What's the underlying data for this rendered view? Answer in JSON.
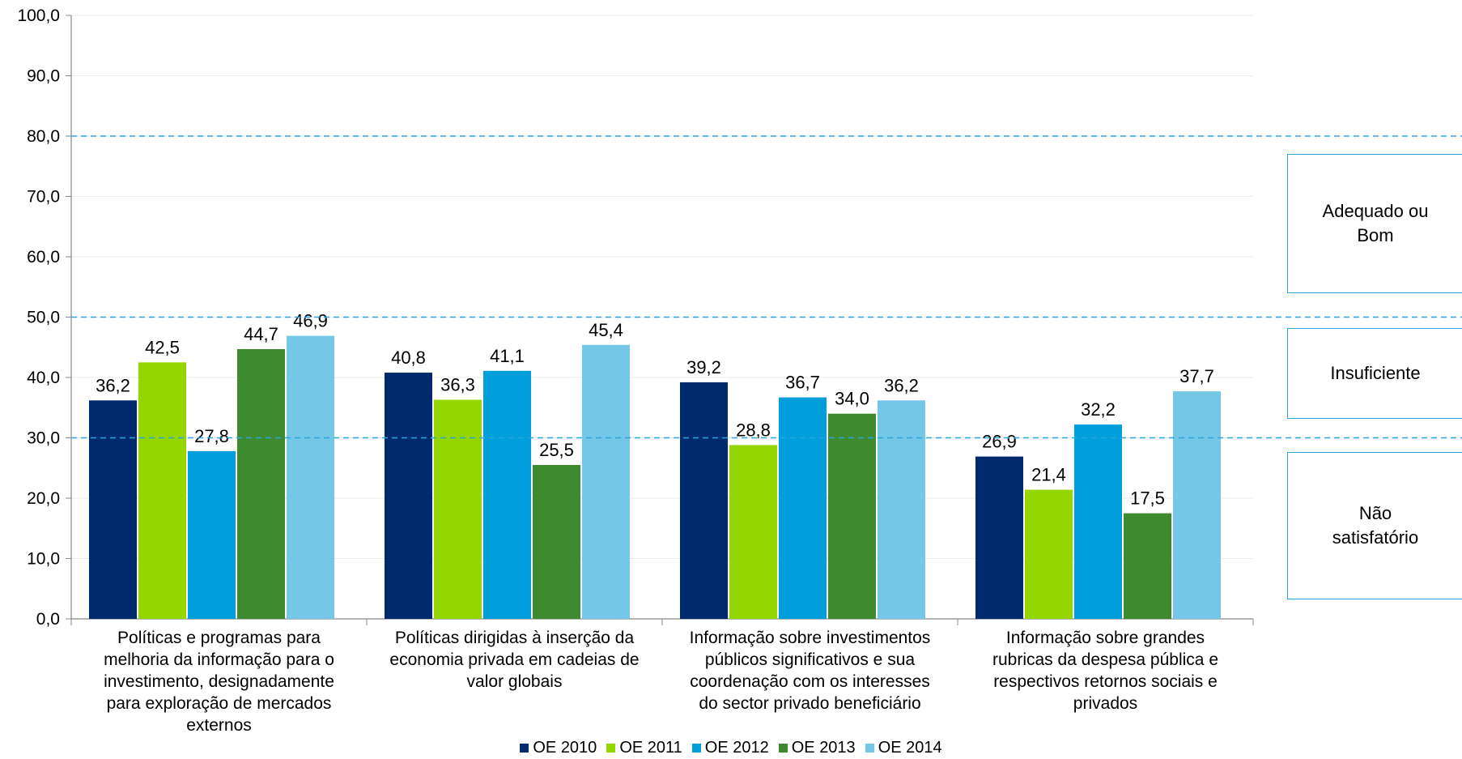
{
  "chart_data": {
    "type": "bar",
    "categories": [
      "Políticas e programas para melhoria da informação para o investimento, designadamente para exploração de mercados externos",
      "Políticas dirigidas à inserção da economia privada em cadeias de valor globais",
      "Informação sobre investimentos públicos significativos e sua coordenação com os interesses do sector privado beneficiário",
      "Informação sobre grandes rubricas da despesa pública e respectivos retornos sociais e privados"
    ],
    "category_lines": [
      [
        "Políticas e programas para",
        "melhoria da informação para o",
        "investimento, designadamente",
        "para exploração de mercados",
        "externos"
      ],
      [
        "Políticas dirigidas à inserção da",
        "economia privada em cadeias de",
        "valor globais"
      ],
      [
        "Informação sobre investimentos",
        "públicos significativos e sua",
        "coordenação com os interesses",
        "do sector privado beneficiário"
      ],
      [
        "Informação sobre grandes",
        "rubricas da despesa pública e",
        "respectivos retornos sociais e",
        "privados"
      ]
    ],
    "series": [
      {
        "name": "OE 2010",
        "color": "#002a6e",
        "values": [
          36.2,
          40.8,
          39.2,
          26.9
        ]
      },
      {
        "name": "OE 2011",
        "color": "#94d600",
        "values": [
          42.5,
          36.3,
          28.8,
          21.4
        ]
      },
      {
        "name": "OE 2012",
        "color": "#009edb",
        "values": [
          27.8,
          41.1,
          36.7,
          32.2
        ]
      },
      {
        "name": "OE 2013",
        "color": "#3d8a2f",
        "values": [
          44.7,
          25.5,
          34.0,
          17.5
        ]
      },
      {
        "name": "OE 2014",
        "color": "#74c7e6",
        "values": [
          46.9,
          45.4,
          36.2,
          37.7
        ]
      }
    ],
    "ylim": [
      0,
      100
    ],
    "yticks": [
      "0,0",
      "10,0",
      "20,0",
      "30,0",
      "40,0",
      "50,0",
      "60,0",
      "70,0",
      "80,0",
      "90,0",
      "100,0"
    ],
    "threshold_lines": [
      30,
      50,
      80
    ],
    "threshold_color": "#2aa6df",
    "bands": [
      {
        "label_lines": [
          "Adequado ou",
          "Bom"
        ]
      },
      {
        "label_lines": [
          "Insuficiente"
        ]
      },
      {
        "label_lines": [
          "Não",
          "satisfatório"
        ]
      }
    ],
    "legend_position": "bottom",
    "grid": true
  }
}
